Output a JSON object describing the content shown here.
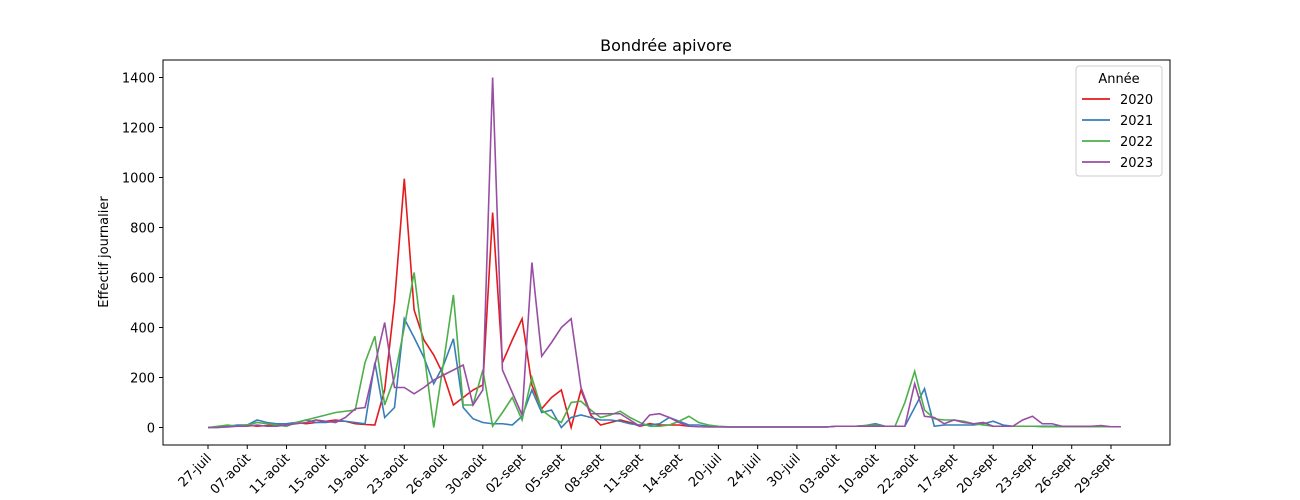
{
  "chart_data": {
    "type": "line",
    "title": "Bondrée apivore",
    "ylabel": "Effectif journalier",
    "categories": [
      "27-juil",
      null,
      null,
      null,
      "07-août",
      null,
      null,
      null,
      "11-août",
      null,
      null,
      null,
      "15-août",
      null,
      null,
      null,
      "19-août",
      null,
      null,
      null,
      "23-août",
      null,
      null,
      null,
      "26-août",
      null,
      null,
      null,
      "30-août",
      null,
      null,
      null,
      "02-sept",
      null,
      null,
      null,
      "05-sept",
      null,
      null,
      null,
      "08-sept",
      null,
      null,
      null,
      "11-sept",
      null,
      null,
      null,
      "14-sept",
      null,
      null,
      null,
      "20-juil",
      null,
      null,
      null,
      "24-juil",
      null,
      null,
      null,
      "30-juil",
      null,
      null,
      null,
      "03-août",
      null,
      null,
      null,
      "10-août",
      null,
      null,
      null,
      "22-août",
      null,
      null,
      null,
      "17-sept",
      null,
      null,
      null,
      "20-sept",
      null,
      null,
      null,
      "23-sept",
      null,
      null,
      null,
      "26-sept",
      null,
      null,
      null,
      "29-sept",
      null
    ],
    "series": [
      {
        "name": "2020",
        "color": "#e41a1c",
        "values": [
          0,
          2,
          5,
          8,
          10,
          5,
          8,
          12,
          15,
          20,
          15,
          20,
          25,
          30,
          25,
          15,
          12,
          10,
          150,
          500,
          995,
          470,
          350,
          290,
          210,
          90,
          120,
          150,
          170,
          860,
          260,
          350,
          435,
          170,
          75,
          120,
          150,
          0,
          150,
          50,
          10,
          20,
          30,
          20,
          5,
          15,
          10,
          10,
          10,
          5,
          null,
          null,
          null,
          null,
          null,
          null,
          null,
          null,
          null,
          null,
          null,
          null,
          null,
          null,
          null,
          null,
          null,
          null,
          null,
          null,
          null,
          null,
          null,
          null,
          null,
          null,
          null,
          null,
          null,
          null,
          null,
          null,
          null,
          null,
          null,
          null,
          null,
          null,
          null,
          null,
          null,
          null,
          null,
          null
        ]
      },
      {
        "name": "2021",
        "color": "#377eb8",
        "values": [
          0,
          0,
          5,
          10,
          10,
          30,
          20,
          15,
          15,
          20,
          30,
          20,
          20,
          25,
          25,
          20,
          15,
          260,
          40,
          80,
          435,
          360,
          280,
          175,
          250,
          355,
          80,
          35,
          20,
          15,
          15,
          10,
          45,
          150,
          60,
          70,
          0,
          40,
          50,
          40,
          30,
          30,
          25,
          15,
          10,
          10,
          15,
          40,
          25,
          10,
          10,
          5,
          3,
          2,
          2,
          2,
          2,
          2,
          2,
          2,
          2,
          2,
          2,
          2,
          5,
          5,
          5,
          8,
          15,
          5,
          5,
          5,
          80,
          155,
          5,
          10,
          10,
          10,
          10,
          15,
          25,
          10,
          5,
          5,
          5,
          5,
          5,
          5,
          5,
          5,
          3,
          3,
          3,
          3
        ]
      },
      {
        "name": "2022",
        "color": "#4daf4a",
        "values": [
          0,
          5,
          10,
          5,
          10,
          20,
          15,
          10,
          5,
          20,
          30,
          40,
          50,
          60,
          65,
          70,
          260,
          365,
          90,
          200,
          400,
          620,
          300,
          0,
          260,
          530,
          90,
          90,
          230,
          5,
          60,
          120,
          30,
          200,
          70,
          40,
          20,
          100,
          105,
          70,
          40,
          50,
          65,
          40,
          20,
          5,
          5,
          10,
          25,
          45,
          20,
          10,
          5,
          3,
          2,
          2,
          2,
          2,
          2,
          2,
          2,
          2,
          2,
          2,
          5,
          5,
          5,
          8,
          10,
          5,
          5,
          100,
          225,
          70,
          35,
          30,
          30,
          25,
          15,
          10,
          5,
          5,
          5,
          5,
          5,
          3,
          3,
          3,
          3,
          3,
          3,
          3,
          3,
          3
        ]
      },
      {
        "name": "2023",
        "color": "#984ea3",
        "values": [
          0,
          0,
          2,
          5,
          5,
          10,
          5,
          5,
          10,
          15,
          20,
          30,
          25,
          20,
          40,
          75,
          80,
          250,
          420,
          160,
          160,
          135,
          160,
          190,
          210,
          230,
          250,
          90,
          150,
          1400,
          230,
          140,
          50,
          660,
          285,
          340,
          400,
          435,
          160,
          55,
          55,
          55,
          55,
          30,
          5,
          50,
          55,
          40,
          20,
          5,
          3,
          2,
          2,
          2,
          2,
          2,
          2,
          2,
          2,
          2,
          2,
          2,
          2,
          2,
          5,
          5,
          5,
          5,
          5,
          5,
          5,
          5,
          175,
          45,
          40,
          15,
          30,
          20,
          15,
          20,
          5,
          5,
          5,
          30,
          45,
          15,
          15,
          5,
          5,
          5,
          5,
          8,
          3,
          3
        ]
      }
    ],
    "ylim": [
      -70,
      1470
    ],
    "yticks": [
      0,
      200,
      400,
      600,
      800,
      1000,
      1200,
      1400
    ],
    "legend_title": "Année",
    "legend": "upper right"
  }
}
